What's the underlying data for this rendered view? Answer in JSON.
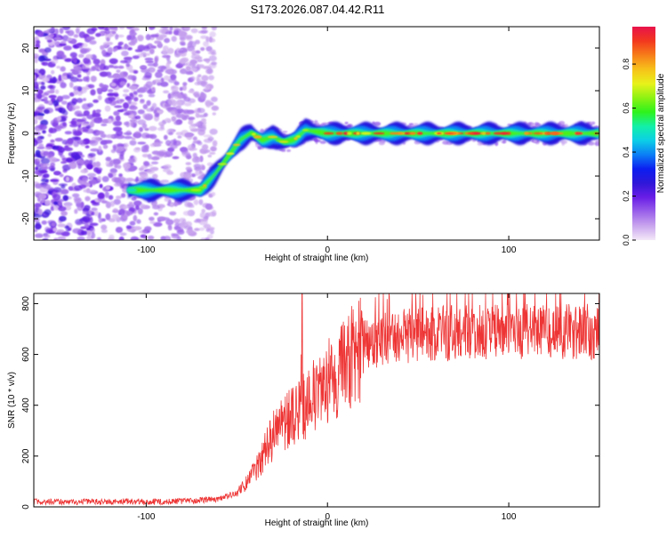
{
  "title": "S173.2026.087.04.42.R11",
  "chart_data": [
    {
      "type": "heatmap",
      "xlabel": "Height of straight line (km)",
      "ylabel": "Frequency (Hz)",
      "xlim": [
        -162,
        150
      ],
      "ylim": [
        -25,
        25
      ],
      "x_ticks": [
        -100,
        0,
        100
      ],
      "y_ticks": [
        -20,
        -10,
        0,
        10,
        20
      ],
      "grid": false,
      "ridge_track": [
        {
          "x": -110,
          "y": -13.3
        },
        {
          "x": -100,
          "y": -13.3
        },
        {
          "x": -90,
          "y": -13.3
        },
        {
          "x": -80,
          "y": -13.3
        },
        {
          "x": -70,
          "y": -13.3
        },
        {
          "x": -62,
          "y": -9.5
        },
        {
          "x": -55,
          "y": -5.5
        },
        {
          "x": -48,
          "y": -1.5
        },
        {
          "x": -42,
          "y": 0.2
        },
        {
          "x": -36,
          "y": -1.6
        },
        {
          "x": -30,
          "y": -0.8
        },
        {
          "x": -24,
          "y": -2.0
        },
        {
          "x": -18,
          "y": -1.4
        },
        {
          "x": -12,
          "y": 0.8
        },
        {
          "x": -6,
          "y": 0.4
        },
        {
          "x": 0,
          "y": 0.0
        },
        {
          "x": 20,
          "y": 0.0
        },
        {
          "x": 50,
          "y": 0.0
        },
        {
          "x": 80,
          "y": 0.0
        },
        {
          "x": 110,
          "y": 0.0
        },
        {
          "x": 150,
          "y": 0.0
        }
      ],
      "colorbar": {
        "label": "Normalized spectral amplitude",
        "range": [
          0,
          0.97
        ],
        "ticks": [
          0.0,
          0.2,
          0.4,
          0.6,
          0.8
        ],
        "colors": [
          "#f4e8f8",
          "#c9a5ee",
          "#9a61ea",
          "#6a1ee6",
          "#2f17d8",
          "#0c1ef0",
          "#0b7ef5",
          "#0ccfe6",
          "#12f0a8",
          "#2ef21c",
          "#8df213",
          "#e8f21a",
          "#f7c21a",
          "#f77d1a",
          "#f2381e",
          "#e8134b"
        ]
      }
    },
    {
      "type": "line",
      "xlabel": "Height of straight line (km)",
      "ylabel": "SNR (10 * v/v)",
      "xlim": [
        -162,
        150
      ],
      "ylim": [
        0,
        840
      ],
      "x_ticks": [
        -100,
        0,
        100
      ],
      "y_ticks": [
        0,
        200,
        400,
        600,
        800
      ],
      "grid": false,
      "color": "#ee3535",
      "series_envelope": [
        {
          "x": -162,
          "y": 20
        },
        {
          "x": -120,
          "y": 20
        },
        {
          "x": -80,
          "y": 22
        },
        {
          "x": -60,
          "y": 30
        },
        {
          "x": -50,
          "y": 55
        },
        {
          "x": -45,
          "y": 90
        },
        {
          "x": -40,
          "y": 140
        },
        {
          "x": -35,
          "y": 210
        },
        {
          "x": -30,
          "y": 280
        },
        {
          "x": -25,
          "y": 320
        },
        {
          "x": -20,
          "y": 350
        },
        {
          "x": -15,
          "y": 380
        },
        {
          "x": -10,
          "y": 410
        },
        {
          "x": -5,
          "y": 450
        },
        {
          "x": 0,
          "y": 500
        },
        {
          "x": 10,
          "y": 570
        },
        {
          "x": 20,
          "y": 630
        },
        {
          "x": 30,
          "y": 665
        },
        {
          "x": 50,
          "y": 680
        },
        {
          "x": 80,
          "y": 685
        },
        {
          "x": 110,
          "y": 690
        },
        {
          "x": 150,
          "y": 690
        }
      ],
      "spike": {
        "x": -14,
        "y": 840
      }
    }
  ]
}
